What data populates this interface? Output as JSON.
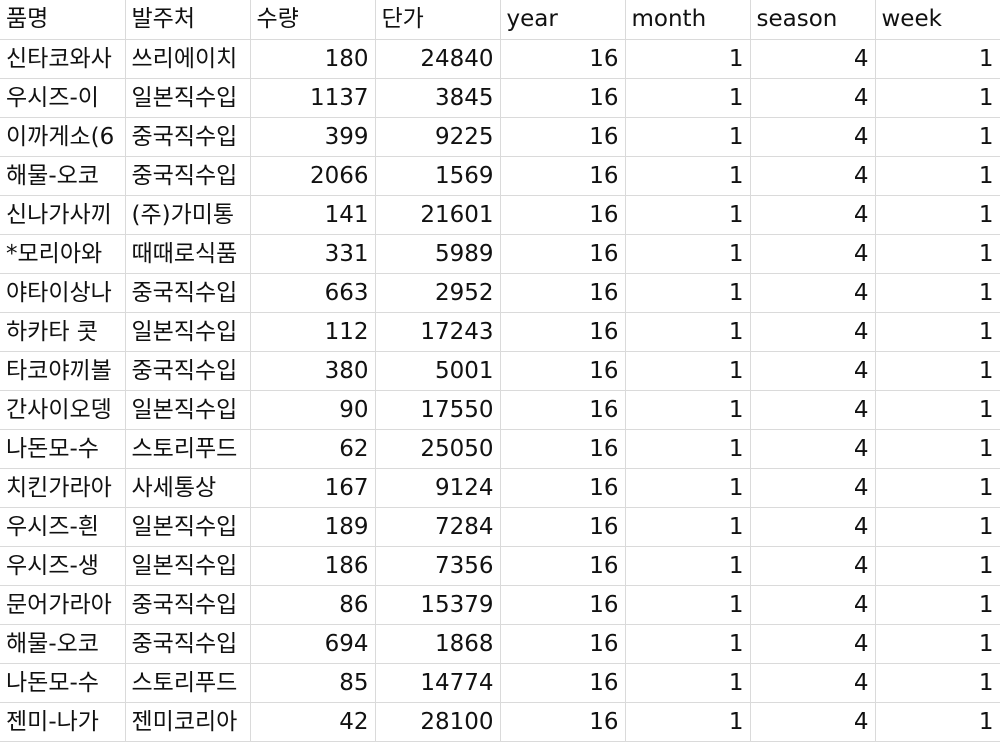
{
  "columns": [
    "품명",
    "발주처",
    "수량",
    "단가",
    "year",
    "month",
    "season",
    "week"
  ],
  "rows": [
    {
      "product": "신타코와사",
      "supplier": "쓰리에이치",
      "qty": "180",
      "price": "24840",
      "year": "16",
      "month": "1",
      "season": "4",
      "week": "1"
    },
    {
      "product": "우시즈-이",
      "supplier": "일본직수입",
      "qty": "1137",
      "price": "3845",
      "year": "16",
      "month": "1",
      "season": "4",
      "week": "1"
    },
    {
      "product": "이까게소(6",
      "supplier": "중국직수입",
      "qty": "399",
      "price": "9225",
      "year": "16",
      "month": "1",
      "season": "4",
      "week": "1"
    },
    {
      "product": "해물-오코",
      "supplier": "중국직수입",
      "qty": "2066",
      "price": "1569",
      "year": "16",
      "month": "1",
      "season": "4",
      "week": "1"
    },
    {
      "product": "신나가사끼",
      "supplier": "(주)가미통",
      "qty": "141",
      "price": "21601",
      "year": "16",
      "month": "1",
      "season": "4",
      "week": "1"
    },
    {
      "product": "*모리아와",
      "supplier": "때때로식품",
      "qty": "331",
      "price": "5989",
      "year": "16",
      "month": "1",
      "season": "4",
      "week": "1"
    },
    {
      "product": "야타이상나",
      "supplier": "중국직수입",
      "qty": "663",
      "price": "2952",
      "year": "16",
      "month": "1",
      "season": "4",
      "week": "1"
    },
    {
      "product": "하카타 콧",
      "supplier": "일본직수입",
      "qty": "112",
      "price": "17243",
      "year": "16",
      "month": "1",
      "season": "4",
      "week": "1"
    },
    {
      "product": "타코야끼볼",
      "supplier": "중국직수입",
      "qty": "380",
      "price": "5001",
      "year": "16",
      "month": "1",
      "season": "4",
      "week": "1"
    },
    {
      "product": "간사이오뎅",
      "supplier": "일본직수입",
      "qty": "90",
      "price": "17550",
      "year": "16",
      "month": "1",
      "season": "4",
      "week": "1"
    },
    {
      "product": "나돈모-수",
      "supplier": "스토리푸드",
      "qty": "62",
      "price": "25050",
      "year": "16",
      "month": "1",
      "season": "4",
      "week": "1"
    },
    {
      "product": "치킨가라아",
      "supplier": "사세통상",
      "qty": "167",
      "price": "9124",
      "year": "16",
      "month": "1",
      "season": "4",
      "week": "1"
    },
    {
      "product": "우시즈-흰",
      "supplier": "일본직수입",
      "qty": "189",
      "price": "7284",
      "year": "16",
      "month": "1",
      "season": "4",
      "week": "1"
    },
    {
      "product": "우시즈-생",
      "supplier": "일본직수입",
      "qty": "186",
      "price": "7356",
      "year": "16",
      "month": "1",
      "season": "4",
      "week": "1"
    },
    {
      "product": "문어가라아",
      "supplier": "중국직수입",
      "qty": "86",
      "price": "15379",
      "year": "16",
      "month": "1",
      "season": "4",
      "week": "1"
    },
    {
      "product": "해물-오코",
      "supplier": "중국직수입",
      "qty": "694",
      "price": "1868",
      "year": "16",
      "month": "1",
      "season": "4",
      "week": "1"
    },
    {
      "product": "나돈모-수",
      "supplier": "스토리푸드",
      "qty": "85",
      "price": "14774",
      "year": "16",
      "month": "1",
      "season": "4",
      "week": "1"
    },
    {
      "product": "젠미-나가",
      "supplier": "젠미코리아",
      "qty": "42",
      "price": "28100",
      "year": "16",
      "month": "1",
      "season": "4",
      "week": "1"
    }
  ]
}
